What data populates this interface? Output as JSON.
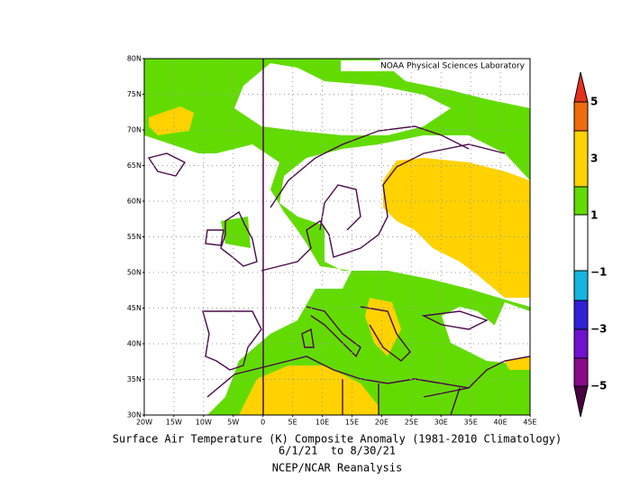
{
  "header": {
    "credit": "NOAA Physical Sciences Laboratory"
  },
  "axes": {
    "lat_labels": [
      "30N",
      "35N",
      "40N",
      "45N",
      "50N",
      "55N",
      "60N",
      "65N",
      "70N",
      "75N",
      "80N"
    ],
    "lon_labels": [
      "20W",
      "15W",
      "10W",
      "5W",
      "0",
      "5E",
      "10E",
      "15E",
      "20E",
      "25E",
      "30E",
      "35E",
      "40E",
      "45E"
    ]
  },
  "caption": {
    "title": "Surface Air Temperature (K) Composite Anomaly (1981-2010 Climatology)",
    "dates": "6/1/21  to 8/30/21",
    "source": "NCEP/NCAR Reanalysis"
  },
  "colorbar": {
    "labels": [
      "5",
      "3",
      "1",
      "−1",
      "−3",
      "−5"
    ]
  }
}
